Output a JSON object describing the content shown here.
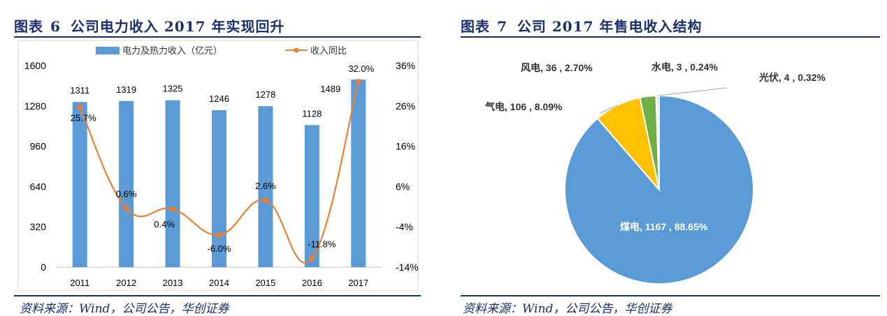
{
  "left": {
    "title_prefix": "图表",
    "title_num": "6",
    "title_text": "公司电力收入 2017 年实现回升",
    "source": "资料来源：Wind，公司公告，华创证券"
  },
  "right": {
    "title_prefix": "图表",
    "title_num": "7",
    "title_text": "公司 2017 年售电收入结构",
    "source": "资料来源：Wind，公司公告，华创证券"
  },
  "colors": {
    "bar": "#5b9bd5",
    "line": "#ed7d31",
    "coal": "#5b9bd5",
    "gas": "#ffc000",
    "wind": "#70ad47",
    "hydro": "#4472c4",
    "pv": "#a5a5a5",
    "title": "#1b2f6e"
  },
  "chart_data": [
    {
      "type": "bar",
      "categories": [
        "2011",
        "2012",
        "2013",
        "2014",
        "2015",
        "2016",
        "2017"
      ],
      "series": [
        {
          "name": "电力及热力收入（亿元）",
          "type": "bar",
          "axis": "left",
          "values": [
            1311,
            1319,
            1325,
            1246,
            1278,
            1128,
            1489
          ],
          "labels": [
            "1311",
            "1319",
            "1325",
            "1246",
            "1278",
            "1128",
            "1489"
          ]
        },
        {
          "name": "收入同比",
          "type": "line",
          "axis": "right",
          "values": [
            25.7,
            0.6,
            0.4,
            -6.0,
            2.6,
            -11.8,
            32.0
          ],
          "labels": [
            "25.7%",
            "0.6%",
            "0.4%",
            "-6.0%",
            "2.6%",
            "-11.8%",
            "32.0%"
          ]
        }
      ],
      "y_left": {
        "range": [
          0,
          1600
        ],
        "ticks": [
          "0",
          "320",
          "640",
          "960",
          "1280",
          "1600"
        ]
      },
      "y_right": {
        "range": [
          -14,
          36
        ],
        "ticks": [
          "-14%",
          "-4%",
          "6%",
          "16%",
          "26%",
          "36%"
        ]
      },
      "grid": false,
      "legend": "top"
    },
    {
      "type": "pie",
      "slices": [
        {
          "name": "煤电",
          "value": 1167,
          "percent": "88.65%",
          "label": "煤电, 1167 , 88.65%"
        },
        {
          "name": "气电",
          "value": 106,
          "percent": "8.09%",
          "label": "气电, 106 , 8.09%"
        },
        {
          "name": "风电",
          "value": 36,
          "percent": "2.70%",
          "label": "风电, 36 , 2.70%"
        },
        {
          "name": "水电",
          "value": 3,
          "percent": "0.24%",
          "label": "水电, 3 , 0.24%"
        },
        {
          "name": "光伏",
          "value": 4,
          "percent": "0.32%",
          "label": "光伏, 4 , 0.32%"
        }
      ]
    }
  ]
}
